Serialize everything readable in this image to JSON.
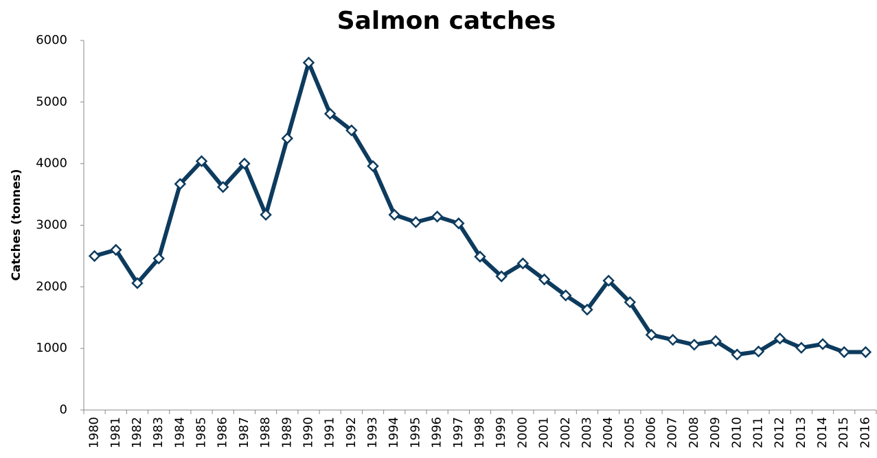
{
  "chart_data": {
    "type": "line",
    "title": "Salmon catches",
    "y_label": "Catches (tonnes)",
    "categories": [
      "1980",
      "1981",
      "1982",
      "1983",
      "1984",
      "1985",
      "1986",
      "1987",
      "1988",
      "1989",
      "1990",
      "1991",
      "1992",
      "1993",
      "1994",
      "1995",
      "1996",
      "1997",
      "1998",
      "1999",
      "2000",
      "2001",
      "2002",
      "2003",
      "2004",
      "2005",
      "2006",
      "2007",
      "2008",
      "2009",
      "2010",
      "2011",
      "2012",
      "2013",
      "2014",
      "2015",
      "2016"
    ],
    "series": [
      {
        "name": "Salmon catches",
        "color": "#0d3b5e",
        "values": [
          2500,
          2600,
          2060,
          2460,
          3670,
          4040,
          3620,
          4000,
          3170,
          4410,
          5640,
          4810,
          4540,
          3960,
          3170,
          3050,
          3140,
          3030,
          2490,
          2170,
          2380,
          2120,
          1860,
          1630,
          2100,
          1750,
          1220,
          1140,
          1060,
          1120,
          900,
          950,
          1160,
          1010,
          1070,
          940,
          940
        ]
      }
    ],
    "ylim": [
      0,
      6000
    ],
    "yticks": [
      0,
      1000,
      2000,
      3000,
      4000,
      5000,
      6000
    ],
    "grid": false
  }
}
